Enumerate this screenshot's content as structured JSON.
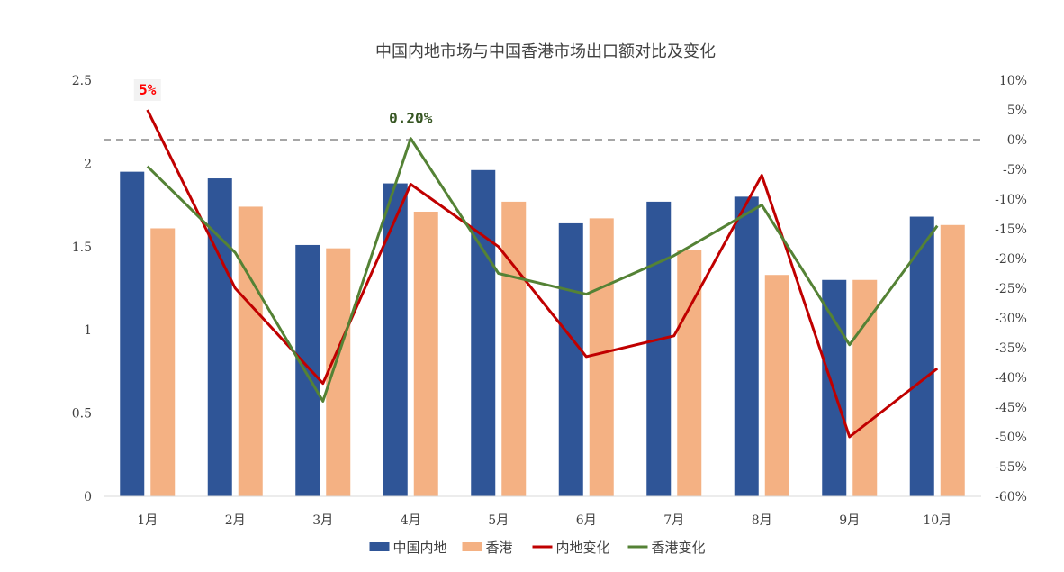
{
  "chart_data": {
    "type": "bar",
    "title": "中国内地市场与中国香港市场出口额对比及变化",
    "categories": [
      "1月",
      "2月",
      "3月",
      "4月",
      "5月",
      "6月",
      "7月",
      "8月",
      "9月",
      "10月"
    ],
    "series": [
      {
        "name": "中国内地",
        "type": "bar",
        "axis": "left",
        "color": "#2F5597",
        "values": [
          1.95,
          1.91,
          1.51,
          1.88,
          1.96,
          1.64,
          1.77,
          1.8,
          1.3,
          1.68
        ]
      },
      {
        "name": "香港",
        "type": "bar",
        "axis": "left",
        "color": "#F4B183",
        "values": [
          1.61,
          1.74,
          1.49,
          1.71,
          1.77,
          1.67,
          1.48,
          1.33,
          1.3,
          1.63
        ]
      },
      {
        "name": "内地变化",
        "type": "line",
        "axis": "right",
        "color": "#C00000",
        "values": [
          5,
          -25,
          -41,
          -7.5,
          -18,
          -36.5,
          -33,
          -6,
          -50,
          -38.5
        ]
      },
      {
        "name": "香港变化",
        "type": "line",
        "axis": "right",
        "color": "#548235",
        "values": [
          -4.5,
          -19,
          -44,
          0.2,
          -22.5,
          -26,
          -19.5,
          -11,
          -34.5,
          -14.5
        ]
      }
    ],
    "y_left": {
      "min": 0,
      "max": 2.5,
      "ticks": [
        "0",
        "0.5",
        "1",
        "1.5",
        "2",
        "2.5"
      ],
      "tick_values": [
        0,
        0.5,
        1,
        1.5,
        2,
        2.5
      ]
    },
    "y_right": {
      "min": -60,
      "max": 10,
      "ticks": [
        "-60%",
        "-55%",
        "-50%",
        "-45%",
        "-40%",
        "-35%",
        "-30%",
        "-25%",
        "-20%",
        "-15%",
        "-10%",
        "-5%",
        "0%",
        "5%",
        "10%"
      ],
      "tick_values": [
        -60,
        -55,
        -50,
        -45,
        -40,
        -35,
        -30,
        -25,
        -20,
        -15,
        -10,
        -5,
        0,
        5,
        10
      ]
    },
    "reference_line": {
      "axis": "right",
      "value": 0,
      "style": "dashed"
    },
    "annotations": [
      {
        "text": "5%",
        "series": "内地变化",
        "category": "1月",
        "color": "#FF0000",
        "boxed": true
      },
      {
        "text": "0.20%",
        "series": "香港变化",
        "category": "4月",
        "color": "#375623",
        "boxed": false
      }
    ],
    "legend": {
      "position": "bottom",
      "entries": [
        "中国内地",
        "香港",
        "内地变化",
        "香港变化"
      ]
    },
    "grid": false
  }
}
